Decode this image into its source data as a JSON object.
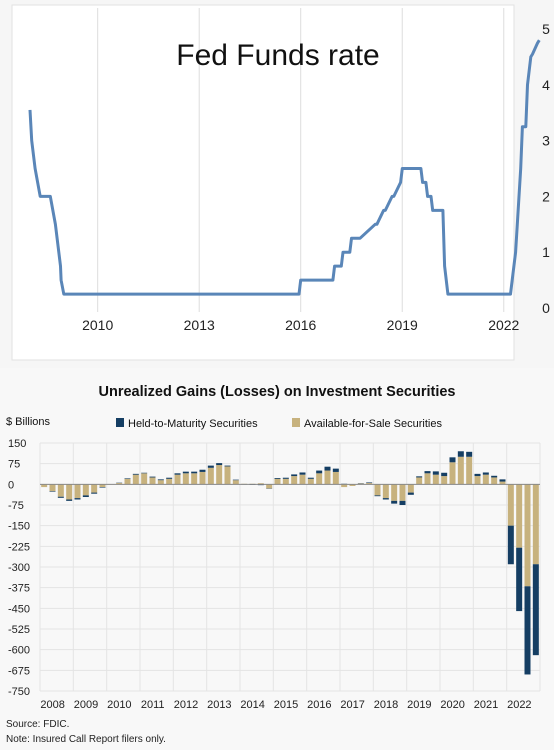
{
  "colors": {
    "fed_line": "#5a86b8",
    "htm": "#153e63",
    "afs": "#c7b27e",
    "grid": "#dddddd",
    "axis_text": "#222222"
  },
  "chart_data": [
    {
      "type": "line",
      "title": "Fed Funds rate",
      "xlabel": "",
      "ylabel": "",
      "x_ticks": [
        "2010",
        "2013",
        "2016",
        "2019",
        "2022"
      ],
      "y_ticks": [
        "0",
        "1",
        "2",
        "3",
        "4",
        "5"
      ],
      "ylim": [
        0,
        5
      ],
      "xlim": [
        2008.0,
        2023.1
      ],
      "y_axis_side": "right",
      "grid": "vertical",
      "series": [
        {
          "x": [
            2008.0,
            2008.05,
            2008.15,
            2008.3,
            2008.6,
            2008.75,
            2008.85,
            2008.9,
            2008.92,
            2009.0,
            2009.05,
            2009.1,
            2015.95,
            2016.0,
            2016.95,
            2017.0,
            2017.2,
            2017.25,
            2017.45,
            2017.5,
            2017.7,
            2017.75,
            2018.2,
            2018.25,
            2018.45,
            2018.5,
            2018.7,
            2018.75,
            2018.95,
            2019.0,
            2019.55,
            2019.6,
            2019.7,
            2019.75,
            2019.85,
            2019.9,
            2020.15,
            2020.2,
            2020.25,
            2020.35,
            2021.95,
            2022.2,
            2022.25,
            2022.35,
            2022.4,
            2022.5,
            2022.55,
            2022.65,
            2022.7,
            2022.8,
            2022.85,
            2023.0,
            2023.05
          ],
          "values": [
            3.55,
            3.0,
            2.5,
            2.0,
            2.0,
            1.5,
            1.0,
            0.75,
            0.5,
            0.25,
            0.25,
            0.25,
            0.25,
            0.5,
            0.5,
            0.75,
            0.75,
            1.0,
            1.0,
            1.25,
            1.25,
            1.25,
            1.5,
            1.5,
            1.75,
            1.75,
            2.0,
            2.0,
            2.25,
            2.5,
            2.5,
            2.25,
            2.25,
            2.0,
            2.0,
            1.75,
            1.75,
            1.75,
            0.75,
            0.25,
            0.25,
            0.25,
            0.5,
            1.0,
            1.5,
            2.5,
            3.25,
            3.25,
            4.0,
            4.5,
            4.55,
            4.75,
            4.8
          ]
        }
      ]
    },
    {
      "type": "bar",
      "stacked": true,
      "title": "Unrealized Gains (Losses) on Investment Securities",
      "ylabel": "$ Billions",
      "xlabel": "",
      "ylim": [
        -750,
        150
      ],
      "y_ticks": [
        "150",
        "75",
        "0",
        "-75",
        "-150",
        "-225",
        "-300",
        "-375",
        "-450",
        "-525",
        "-600",
        "-675",
        "-750"
      ],
      "x_ticks": [
        "2008",
        "2009",
        "2010",
        "2011",
        "2012",
        "2013",
        "2014",
        "2015",
        "2016",
        "2017",
        "2018",
        "2019",
        "2020",
        "2021",
        "2022"
      ],
      "legend_position": "top",
      "categories": [
        "2008Q1",
        "2008Q2",
        "2008Q3",
        "2008Q4",
        "2009Q1",
        "2009Q2",
        "2009Q3",
        "2009Q4",
        "2010Q1",
        "2010Q2",
        "2010Q3",
        "2010Q4",
        "2011Q1",
        "2011Q2",
        "2011Q3",
        "2011Q4",
        "2012Q1",
        "2012Q2",
        "2012Q3",
        "2012Q4",
        "2013Q1",
        "2013Q2",
        "2013Q3",
        "2013Q4",
        "2014Q1",
        "2014Q2",
        "2014Q3",
        "2014Q4",
        "2015Q1",
        "2015Q2",
        "2015Q3",
        "2015Q4",
        "2016Q1",
        "2016Q2",
        "2016Q3",
        "2016Q4",
        "2017Q1",
        "2017Q2",
        "2017Q3",
        "2017Q4",
        "2018Q1",
        "2018Q2",
        "2018Q3",
        "2018Q4",
        "2019Q1",
        "2019Q2",
        "2019Q3",
        "2019Q4",
        "2020Q1",
        "2020Q2",
        "2020Q3",
        "2020Q4",
        "2021Q1",
        "2021Q2",
        "2021Q3",
        "2021Q4",
        "2022Q1",
        "2022Q2",
        "2022Q3",
        "2022Q4"
      ],
      "series": [
        {
          "name": "Held-to-Maturity Securities",
          "values": [
            0,
            -2,
            -4,
            -5,
            -5,
            -6,
            -4,
            -2,
            0,
            1,
            2,
            3,
            2,
            3,
            3,
            4,
            5,
            6,
            6,
            8,
            8,
            7,
            3,
            2,
            -1,
            -2,
            -3,
            -1,
            3,
            4,
            6,
            8,
            4,
            10,
            14,
            12,
            2,
            1,
            1,
            2,
            -3,
            -5,
            -10,
            -15,
            -8,
            4,
            8,
            12,
            12,
            18,
            20,
            18,
            8,
            8,
            6,
            8,
            -140,
            -230,
            -320,
            -330
          ]
        },
        {
          "name": "Available-for-Sale Securities",
          "values": [
            -10,
            -25,
            -45,
            -55,
            -50,
            -40,
            -30,
            -10,
            0,
            5,
            20,
            35,
            40,
            25,
            15,
            20,
            35,
            40,
            40,
            45,
            60,
            70,
            65,
            15,
            2,
            2,
            4,
            -15,
            20,
            20,
            30,
            35,
            20,
            40,
            50,
            45,
            -10,
            -6,
            3,
            5,
            -40,
            -50,
            -60,
            -60,
            -30,
            25,
            40,
            35,
            30,
            80,
            100,
            100,
            30,
            35,
            25,
            10,
            -150,
            -230,
            -370,
            -290
          ]
        }
      ]
    }
  ],
  "notes": {
    "source": "Source: FDIC.",
    "note": "Note: Insured Call Report filers only."
  }
}
